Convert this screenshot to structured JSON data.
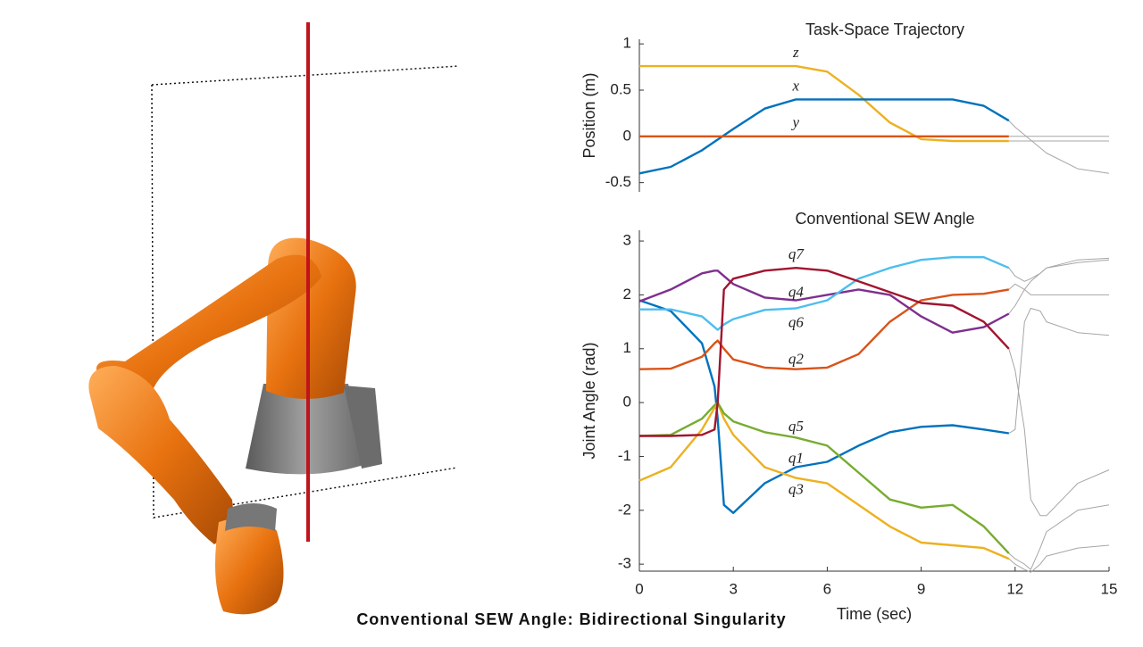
{
  "caption": "Conventional SEW Angle: Bidirectional Singularity",
  "chart_data": [
    {
      "type": "line",
      "title": "Task-Space Trajectory",
      "ylabel": "Position (m)",
      "xlim": [
        0,
        15
      ],
      "ylim": [
        -0.6,
        1.05
      ],
      "yticks": [
        -0.5,
        0,
        0.5,
        1
      ],
      "series": [
        {
          "name": "z",
          "color": "#EDB120",
          "x": [
            0,
            1,
            2,
            3,
            4,
            5,
            6,
            7,
            8,
            9,
            10,
            11,
            11.8
          ],
          "values": [
            0.76,
            0.76,
            0.76,
            0.76,
            0.76,
            0.76,
            0.7,
            0.45,
            0.15,
            -0.03,
            -0.05,
            -0.05,
            -0.05
          ]
        },
        {
          "name": "x",
          "color": "#0072BD",
          "x": [
            0,
            1,
            2,
            3,
            4,
            5,
            6,
            7,
            8,
            9,
            10,
            11,
            11.8
          ],
          "values": [
            -0.4,
            -0.33,
            -0.15,
            0.08,
            0.3,
            0.4,
            0.4,
            0.4,
            0.4,
            0.4,
            0.4,
            0.33,
            0.17
          ]
        },
        {
          "name": "y",
          "color": "#D95319",
          "x": [
            0,
            1,
            2,
            3,
            4,
            5,
            6,
            7,
            8,
            9,
            10,
            11,
            11.8
          ],
          "values": [
            0,
            0,
            0,
            0,
            0,
            0,
            0,
            0,
            0,
            0,
            0,
            0,
            0
          ]
        },
        {
          "color": "#a6a6a6",
          "x": [
            11.8,
            12,
            13,
            14,
            15
          ],
          "values": [
            -0.05,
            -0.05,
            -0.05,
            -0.05,
            -0.05
          ]
        },
        {
          "color": "#a6a6a6",
          "x": [
            11.8,
            12,
            13,
            14,
            15
          ],
          "values": [
            0.17,
            0.1,
            -0.18,
            -0.35,
            -0.4
          ]
        },
        {
          "color": "#a6a6a6",
          "x": [
            11.8,
            12,
            13,
            14,
            15
          ],
          "values": [
            0,
            0,
            0,
            0,
            0
          ]
        }
      ]
    },
    {
      "type": "line",
      "title": "Conventional SEW Angle",
      "ylabel": "Joint Angle (rad)",
      "xlabel": "Time (sec)",
      "xlim": [
        0,
        15
      ],
      "xticks": [
        0,
        3,
        6,
        9,
        12,
        15
      ],
      "ylim": [
        -3.13,
        3.2
      ],
      "yticks": [
        -3,
        -2,
        -1,
        0,
        1,
        2,
        3
      ],
      "series": [
        {
          "name": "q1",
          "color": "#0072BD",
          "x": [
            0,
            1,
            2,
            2.4,
            2.5,
            2.7,
            3,
            4,
            5,
            6,
            7,
            8,
            9,
            10,
            11,
            11.8
          ],
          "values": [
            1.9,
            1.7,
            1.1,
            0.3,
            -0.3,
            -1.9,
            -2.05,
            -1.5,
            -1.2,
            -1.1,
            -0.8,
            -0.55,
            -0.45,
            -0.42,
            -0.5,
            -0.57
          ]
        },
        {
          "name": "q2",
          "color": "#D95319",
          "x": [
            0,
            1,
            2,
            2.4,
            2.5,
            2.7,
            3,
            4,
            5,
            6,
            7,
            8,
            9,
            10,
            11,
            11.8
          ],
          "values": [
            0.62,
            0.63,
            0.85,
            1.1,
            1.15,
            1.0,
            0.8,
            0.65,
            0.62,
            0.65,
            0.9,
            1.5,
            1.9,
            2.0,
            2.02,
            2.1
          ]
        },
        {
          "name": "q3",
          "color": "#EDB120",
          "x": [
            0,
            1,
            2,
            2.4,
            2.5,
            2.7,
            3,
            4,
            5,
            6,
            7,
            8,
            9,
            10,
            11,
            11.8
          ],
          "values": [
            -1.45,
            -1.2,
            -0.5,
            -0.1,
            0,
            -0.3,
            -0.6,
            -1.2,
            -1.4,
            -1.5,
            -1.9,
            -2.3,
            -2.6,
            -2.65,
            -2.7,
            -2.9
          ]
        },
        {
          "name": "q4",
          "color": "#7E2F8E",
          "x": [
            0,
            1,
            2,
            2.4,
            2.5,
            2.7,
            3,
            4,
            5,
            6,
            7,
            8,
            9,
            10,
            11,
            11.8
          ],
          "values": [
            1.88,
            2.1,
            2.4,
            2.45,
            2.45,
            2.35,
            2.2,
            1.95,
            1.9,
            2.0,
            2.1,
            2.0,
            1.6,
            1.3,
            1.4,
            1.65
          ]
        },
        {
          "name": "q5",
          "color": "#77AC30",
          "x": [
            0,
            1,
            2,
            2.4,
            2.5,
            2.7,
            3,
            4,
            5,
            6,
            7,
            8,
            9,
            10,
            11,
            11.8
          ],
          "values": [
            -0.62,
            -0.6,
            -0.3,
            -0.05,
            0,
            -0.2,
            -0.35,
            -0.55,
            -0.65,
            -0.8,
            -1.3,
            -1.8,
            -1.95,
            -1.9,
            -2.3,
            -2.8
          ]
        },
        {
          "name": "q6",
          "color": "#4DBEEE",
          "x": [
            0,
            1,
            2,
            2.4,
            2.5,
            2.7,
            3,
            4,
            5,
            6,
            7,
            8,
            9,
            10,
            11,
            11.8
          ],
          "values": [
            1.73,
            1.73,
            1.6,
            1.4,
            1.35,
            1.45,
            1.55,
            1.72,
            1.75,
            1.9,
            2.3,
            2.5,
            2.65,
            2.7,
            2.7,
            2.5
          ]
        },
        {
          "name": "q7",
          "color": "#A2142F",
          "x": [
            0,
            1,
            2,
            2.4,
            2.5,
            2.7,
            3,
            4,
            5,
            6,
            7,
            8,
            9,
            10,
            11,
            11.8
          ],
          "values": [
            -0.62,
            -0.62,
            -0.6,
            -0.5,
            0,
            2.1,
            2.3,
            2.45,
            2.5,
            2.45,
            2.25,
            2.05,
            1.85,
            1.8,
            1.5,
            1.0
          ]
        },
        {
          "color": "#a6a6a6",
          "x": [
            11.8,
            12,
            12.3,
            12.5,
            12.8,
            13,
            14,
            15
          ],
          "values": [
            -0.57,
            -0.5,
            1.5,
            1.75,
            1.7,
            1.5,
            1.3,
            1.25
          ]
        },
        {
          "color": "#a6a6a6",
          "x": [
            11.8,
            12,
            12.3,
            12.5,
            12.8,
            13,
            14,
            15
          ],
          "values": [
            2.1,
            2.2,
            2.1,
            2.0,
            2.0,
            2.0,
            2.0,
            2.0
          ]
        },
        {
          "color": "#a6a6a6",
          "x": [
            11.8,
            12,
            12.3,
            12.5,
            12.8,
            13,
            14,
            15
          ],
          "values": [
            -2.9,
            -3.0,
            -3.1,
            -3.15,
            -3.0,
            -2.85,
            -2.7,
            -2.65
          ]
        },
        {
          "color": "#a6a6a6",
          "x": [
            11.8,
            12,
            12.3,
            12.5,
            12.8,
            13,
            14,
            15
          ],
          "values": [
            1.65,
            1.8,
            2.1,
            2.25,
            2.4,
            2.5,
            2.65,
            2.68
          ]
        },
        {
          "color": "#a6a6a6",
          "x": [
            11.8,
            12,
            12.3,
            12.5,
            12.8,
            13,
            14,
            15
          ],
          "values": [
            -2.8,
            -2.9,
            -3.0,
            -3.1,
            -2.7,
            -2.4,
            -2.0,
            -1.9
          ]
        },
        {
          "color": "#a6a6a6",
          "x": [
            11.8,
            12,
            12.3,
            12.5,
            12.8,
            13,
            14,
            15
          ],
          "values": [
            2.5,
            2.35,
            2.25,
            2.3,
            2.4,
            2.5,
            2.6,
            2.65
          ]
        },
        {
          "color": "#a6a6a6",
          "x": [
            11.8,
            12,
            12.3,
            12.5,
            12.8,
            13,
            14,
            15
          ],
          "values": [
            1.0,
            0.6,
            -0.5,
            -1.8,
            -2.1,
            -2.1,
            -1.5,
            -1.25
          ]
        }
      ]
    }
  ]
}
